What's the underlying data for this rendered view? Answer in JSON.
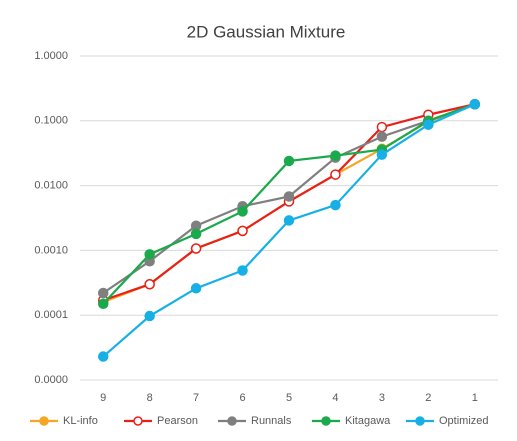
{
  "chart_data": {
    "type": "line",
    "title": "2D Gaussian Mixture",
    "categories": [
      "9",
      "8",
      "7",
      "6",
      "5",
      "4",
      "3",
      "2",
      "1"
    ],
    "log_scale": true,
    "grid": true,
    "legend": "bottom",
    "ylim": [
      1e-05,
      1
    ],
    "yticks": [
      {
        "value": 1e-05,
        "label": "0.0000"
      },
      {
        "value": 0.0001,
        "label": "0.0001"
      },
      {
        "value": 0.001,
        "label": "0.0010"
      },
      {
        "value": 0.01,
        "label": "0.0100"
      },
      {
        "value": 0.1,
        "label": "0.1000"
      },
      {
        "value": 1,
        "label": "1.0000"
      }
    ],
    "series": [
      {
        "name": "KL-info",
        "color": "#f5a623",
        "marker": "filled",
        "values": [
          0.00016,
          0.0003,
          0.00107,
          0.002,
          0.0057,
          0.0148,
          0.037,
          0.097,
          0.18
        ]
      },
      {
        "name": "Pearson",
        "color": "#e8201a",
        "marker": "open",
        "values": [
          0.00017,
          0.0003,
          0.00107,
          0.002,
          0.0057,
          0.0148,
          0.08,
          0.124,
          0.18
        ]
      },
      {
        "name": "Runnals",
        "color": "#7f7f7f",
        "marker": "filled",
        "values": [
          0.00022,
          0.00068,
          0.0024,
          0.0048,
          0.0068,
          0.027,
          0.057,
          0.1,
          0.18
        ]
      },
      {
        "name": "Kitagawa",
        "color": "#1aaa4b",
        "marker": "filled",
        "values": [
          0.00015,
          0.00087,
          0.0018,
          0.004,
          0.024,
          0.029,
          0.036,
          0.1,
          0.18
        ]
      },
      {
        "name": "Optimized",
        "color": "#17b0e6",
        "marker": "filled",
        "values": [
          2.3e-05,
          9.7e-05,
          0.00026,
          0.00049,
          0.0029,
          0.005,
          0.03,
          0.087,
          0.18
        ]
      }
    ]
  }
}
